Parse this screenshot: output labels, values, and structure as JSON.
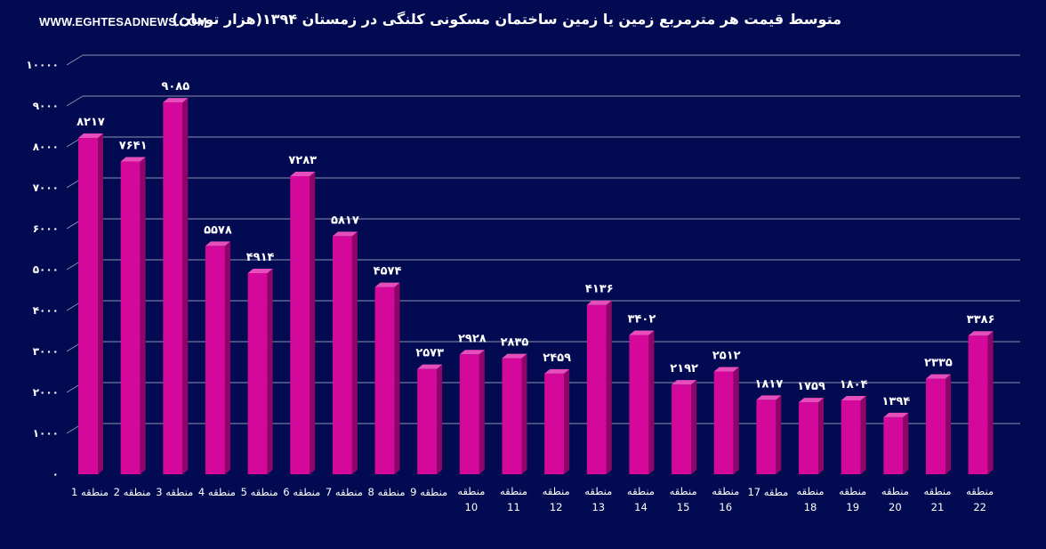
{
  "header": {
    "watermark": "WWW.EGHTESADNEWS.COM",
    "title": "متوسط قیمت هر مترمربع زمین یا زمین ساختمان مسکونی کلنگی در زمستان ۱۳۹۴(هزار تومان)"
  },
  "colors": {
    "background": "#020a52",
    "bar_front": "#d4089a",
    "bar_side": "#8e0569",
    "bar_top": "#e64fbb"
  },
  "chart_data": {
    "type": "bar",
    "title": "متوسط قیمت هر مترمربع زمین یا زمین ساختمان مسکونی کلنگی در زمستان ۱۳۹۴(هزار تومان)",
    "xlabel": "",
    "ylabel": "",
    "ylim": [
      0,
      10000
    ],
    "grid": true,
    "y_ticks": [
      0,
      1000,
      2000,
      3000,
      4000,
      5000,
      6000,
      7000,
      8000,
      9000,
      10000
    ],
    "y_tick_labels": [
      "۰",
      "۱۰۰۰",
      "۲۰۰۰",
      "۳۰۰۰",
      "۴۰۰۰",
      "۵۰۰۰",
      "۶۰۰۰",
      "۷۰۰۰",
      "۸۰۰۰",
      "۹۰۰۰",
      "۱۰۰۰۰"
    ],
    "categories": [
      {
        "word": "منطقه",
        "num": "1"
      },
      {
        "word": "منطقه",
        "num": "2"
      },
      {
        "word": "منطقه",
        "num": "3"
      },
      {
        "word": "منطقه",
        "num": "4"
      },
      {
        "word": "منطقه",
        "num": "5"
      },
      {
        "word": "منطقه",
        "num": "6"
      },
      {
        "word": "منطقه",
        "num": "7"
      },
      {
        "word": "منطقه",
        "num": "8"
      },
      {
        "word": "منطقه",
        "num": "9"
      },
      {
        "word": "منطقه",
        "num": "10"
      },
      {
        "word": "منطقه",
        "num": "11"
      },
      {
        "word": "منطقه",
        "num": "12"
      },
      {
        "word": "منطقه",
        "num": "13"
      },
      {
        "word": "منطقه",
        "num": "14"
      },
      {
        "word": "منطقه",
        "num": "15"
      },
      {
        "word": "منطقه",
        "num": "16"
      },
      {
        "word": "مطقه",
        "num": "17"
      },
      {
        "word": "منطقه",
        "num": "18"
      },
      {
        "word": "منطقه",
        "num": "19"
      },
      {
        "word": "منطقه",
        "num": "20"
      },
      {
        "word": "منطقه",
        "num": "21"
      },
      {
        "word": "منطقه",
        "num": "22"
      }
    ],
    "values": [
      8217,
      7641,
      9085,
      5578,
      4914,
      7283,
      5817,
      4574,
      2573,
      2928,
      2835,
      2459,
      4136,
      3402,
      2192,
      2512,
      1817,
      1759,
      1804,
      1394,
      2335,
      3386
    ],
    "value_labels": [
      "۸۲۱۷",
      "۷۶۴۱",
      "۹۰۸۵",
      "۵۵۷۸",
      "۴۹۱۴",
      "۷۲۸۳",
      "۵۸۱۷",
      "۴۵۷۴",
      "۲۵۷۳",
      "۲۹۲۸",
      "۲۸۳۵",
      "۲۴۵۹",
      "۴۱۳۶",
      "۳۴۰۲",
      "۲۱۹۲",
      "۲۵۱۲",
      "۱۸۱۷",
      "۱۷۵۹",
      "۱۸۰۴",
      "۱۳۹۴",
      "۲۳۳۵",
      "۳۳۸۶"
    ]
  }
}
